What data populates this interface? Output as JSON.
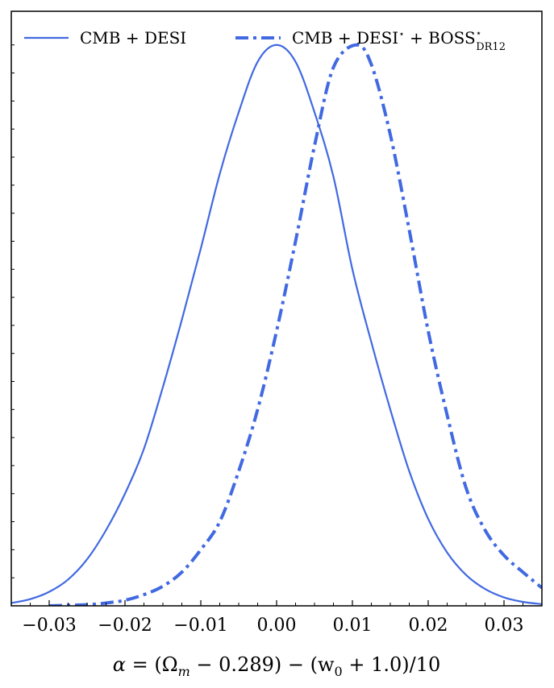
{
  "chart_data": {
    "type": "line",
    "xlabel": "α = (Ω_m − 0.289) − (w_0 + 1.0)/10",
    "xlabel_parts": {
      "alpha": "α",
      "eq": " = (Ω",
      "m_sub": "m",
      "mid": " − 0.289) − (w",
      "zero_sub": "0",
      "tail": " + 1.0)/10"
    },
    "ylabel": "",
    "xlim": [
      -0.035,
      0.035
    ],
    "ylim": [
      0,
      1.06
    ],
    "xticks": [
      -0.03,
      -0.02,
      -0.01,
      0.0,
      0.01,
      0.02,
      0.03
    ],
    "xtick_labels": [
      "−0.03",
      "−0.02",
      "−0.01",
      "0.00",
      "0.01",
      "0.02",
      "0.03"
    ],
    "y_minor_ticks": [
      0.05,
      0.1,
      0.15,
      0.2,
      0.25,
      0.3,
      0.35,
      0.4,
      0.45,
      0.5,
      0.55,
      0.6,
      0.65,
      0.7,
      0.75,
      0.8,
      0.85,
      0.9,
      0.95,
      1.0
    ],
    "grid": false,
    "legend_position": "top",
    "series": [
      {
        "name": "CMB + DESI",
        "style": "solid",
        "color": "#4169e1",
        "x": [
          -0.035,
          -0.0325,
          -0.03,
          -0.0275,
          -0.025,
          -0.0225,
          -0.02,
          -0.0175,
          -0.015,
          -0.0125,
          -0.01,
          -0.0075,
          -0.005,
          -0.0025,
          0.0,
          0.0025,
          0.005,
          0.0075,
          0.01,
          0.0125,
          0.015,
          0.0175,
          0.02,
          0.0225,
          0.025,
          0.0275,
          0.03,
          0.0325,
          0.035
        ],
        "y": [
          0.005,
          0.012,
          0.025,
          0.047,
          0.083,
          0.135,
          0.2,
          0.28,
          0.39,
          0.51,
          0.637,
          0.77,
          0.88,
          0.97,
          1.0,
          0.97,
          0.88,
          0.765,
          0.6,
          0.47,
          0.35,
          0.24,
          0.155,
          0.095,
          0.055,
          0.03,
          0.015,
          0.007,
          0.003
        ]
      },
      {
        "name_parts": {
          "main": "CMB + DESI",
          "star1": "⋆",
          "plus": " + BOSS",
          "sup": "⋆",
          "sub": "DR12"
        },
        "name": "CMB + DESI⋆ + BOSS⋆_DR12",
        "style": "dashdot",
        "color": "#4169e1",
        "x": [
          -0.03,
          -0.0275,
          -0.025,
          -0.0225,
          -0.02,
          -0.0175,
          -0.015,
          -0.0125,
          -0.01,
          -0.0075,
          -0.005,
          -0.0025,
          0.0,
          0.0025,
          0.005,
          0.0075,
          0.0105,
          0.0125,
          0.015,
          0.0175,
          0.02,
          0.0225,
          0.025,
          0.0275,
          0.03,
          0.0325,
          0.035
        ],
        "y": [
          0.0,
          0.001,
          0.002,
          0.005,
          0.01,
          0.02,
          0.035,
          0.06,
          0.1,
          0.15,
          0.24,
          0.35,
          0.49,
          0.65,
          0.82,
          0.96,
          1.0,
          0.965,
          0.84,
          0.67,
          0.49,
          0.34,
          0.21,
          0.135,
          0.09,
          0.06,
          0.032
        ]
      }
    ]
  }
}
